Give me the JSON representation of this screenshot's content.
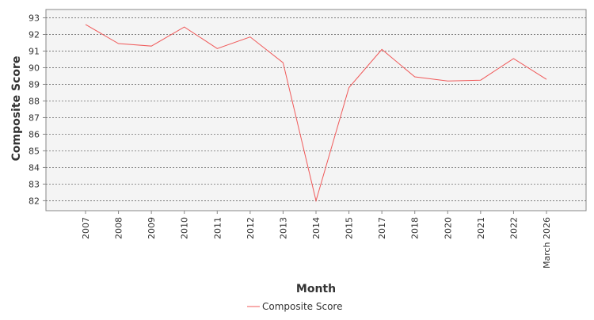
{
  "colors": {
    "series": "#f05a5a",
    "plot_background": "#f4f4f4",
    "grid": "#555555",
    "axis": "#888888"
  },
  "chart_data": {
    "type": "line",
    "title": "",
    "xlabel": "Month",
    "ylabel": "Composite Score",
    "categories": [
      "2007",
      "2008",
      "2009",
      "2010",
      "2011",
      "2012",
      "2013",
      "2014",
      "2015",
      "2017",
      "2018",
      "2020",
      "2021",
      "2022",
      "March 2026"
    ],
    "series": [
      {
        "name": "Composite Score",
        "values": [
          92.6,
          91.45,
          91.3,
          92.45,
          91.15,
          91.85,
          90.3,
          82.0,
          88.8,
          91.1,
          89.45,
          89.2,
          89.25,
          90.55,
          89.3
        ]
      }
    ],
    "yticks": [
      82,
      83,
      84,
      85,
      86,
      87,
      88,
      89,
      90,
      91,
      92,
      93
    ],
    "ylim": [
      81.4,
      93.5
    ],
    "grid": true,
    "legend_position": "bottom"
  }
}
